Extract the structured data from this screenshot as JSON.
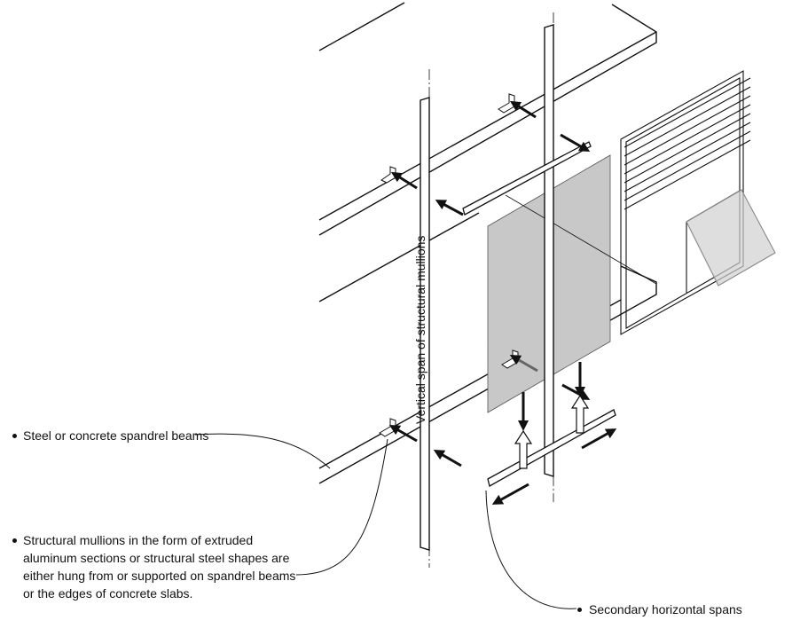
{
  "labels": {
    "spandrel_beams": "Steel or concrete spandrel beams",
    "structural_mullions": "Structural mullions in the form of extruded aluminum sections or structural steel shapes are either hung from or supported on spandrel beams or the edges of concrete slabs.",
    "secondary_spans": "Secondary horizontal spans",
    "vertical_span": "Vertical span of structural mullions"
  },
  "colors": {
    "line": "#111111",
    "panel": "#c8c8c8",
    "arrow_dark": "#111111",
    "arrow_grey": "#666666"
  }
}
